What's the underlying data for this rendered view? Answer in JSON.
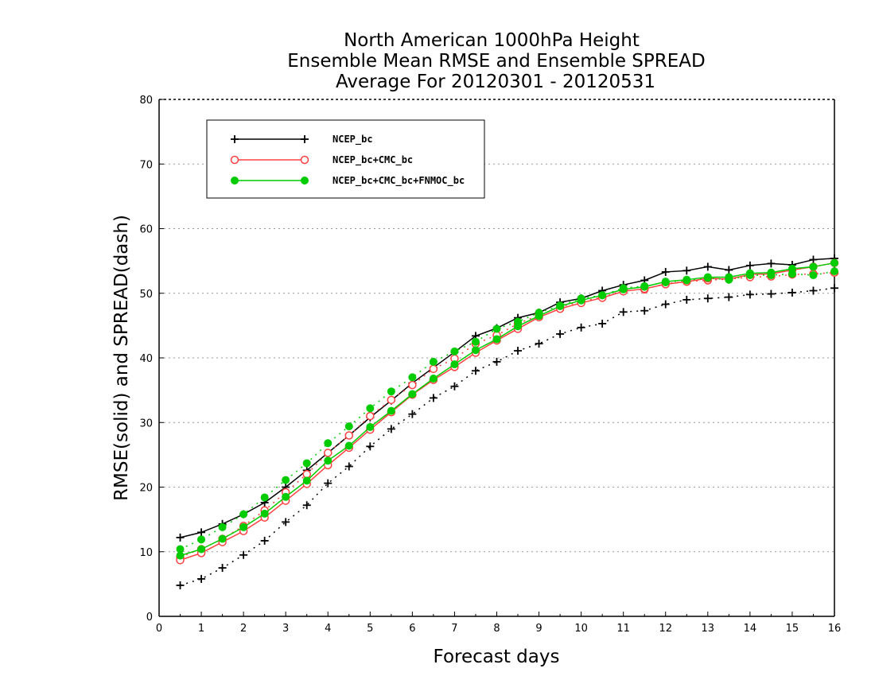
{
  "chart_data": {
    "type": "line",
    "title": [
      "North American 1000hPa Height",
      "Ensemble Mean RMSE and Ensemble SPREAD",
      "Average For 20120301 - 20120531"
    ],
    "xlabel": "Forecast days",
    "ylabel": "RMSE(solid) and SPREAD(dash)",
    "xlim": [
      0,
      16
    ],
    "ylim": [
      0,
      80
    ],
    "xticks": [
      0,
      1,
      2,
      3,
      4,
      5,
      6,
      7,
      8,
      9,
      10,
      11,
      12,
      13,
      14,
      15,
      16
    ],
    "yticks": [
      0,
      10,
      20,
      30,
      40,
      50,
      60,
      70,
      80
    ],
    "grid": "horizontal-dotted",
    "legend_position": "top-left",
    "x": [
      0.5,
      1,
      1.5,
      2,
      2.5,
      3,
      3.5,
      4,
      4.5,
      5,
      5.5,
      6,
      6.5,
      7,
      7.5,
      8,
      8.5,
      9,
      9.5,
      10,
      10.5,
      11,
      11.5,
      12,
      12.5,
      13,
      13.5,
      14,
      14.5,
      15,
      15.5,
      16
    ],
    "series": [
      {
        "name": "NCEP_bc",
        "color": "#000000",
        "marker": "plus",
        "rmse": [
          12.2,
          13.0,
          14.3,
          15.8,
          17.6,
          20.0,
          22.6,
          25.3,
          28.0,
          30.8,
          33.4,
          36.1,
          38.5,
          40.9,
          43.4,
          44.6,
          46.2,
          47.0,
          48.6,
          49.2,
          50.4,
          51.3,
          52.0,
          53.3,
          53.5,
          54.1,
          53.6,
          54.3,
          54.6,
          54.4,
          55.2,
          55.4
        ],
        "spread": [
          4.8,
          5.8,
          7.5,
          9.5,
          11.7,
          14.6,
          17.2,
          20.6,
          23.2,
          26.3,
          29.0,
          31.3,
          33.8,
          35.6,
          38.0,
          39.4,
          41.1,
          42.2,
          43.7,
          44.7,
          45.3,
          47.1,
          47.3,
          48.3,
          49.0,
          49.2,
          49.4,
          49.8,
          49.9,
          50.1,
          50.4,
          50.8
        ]
      },
      {
        "name": "NCEP_bc+CMC_bc",
        "color": "#ff4040",
        "marker": "open-circle",
        "rmse": [
          8.7,
          9.8,
          11.5,
          13.2,
          15.3,
          17.9,
          20.5,
          23.4,
          26.1,
          28.9,
          31.6,
          34.3,
          36.6,
          38.6,
          40.8,
          42.7,
          44.5,
          46.3,
          47.6,
          48.5,
          49.3,
          50.3,
          50.7,
          51.4,
          51.8,
          52.3,
          52.2,
          52.9,
          53.0,
          53.6,
          54.1,
          54.7
        ],
        "spread": [
          9.2,
          10.4,
          12.0,
          14.0,
          16.4,
          19.2,
          22.0,
          25.3,
          28.0,
          31.0,
          33.5,
          35.8,
          38.3,
          39.9,
          42.2,
          43.5,
          45.3,
          46.6,
          47.9,
          48.7,
          49.4,
          50.4,
          50.6,
          51.5,
          51.8,
          52.0,
          52.2,
          52.5,
          52.6,
          52.9,
          53.0,
          53.2
        ]
      },
      {
        "name": "NCEP_bc+CMC_bc+FNMOC_bc",
        "color": "#00cc00",
        "marker": "filled-circle",
        "rmse": [
          9.4,
          10.4,
          12.0,
          13.8,
          15.9,
          18.5,
          21.0,
          24.1,
          26.4,
          29.3,
          31.8,
          34.4,
          36.8,
          39.0,
          41.2,
          42.9,
          44.9,
          46.5,
          48.0,
          48.9,
          49.7,
          50.6,
          51.0,
          51.8,
          52.1,
          52.5,
          52.5,
          53.1,
          53.2,
          53.8,
          54.1,
          54.7
        ],
        "spread": [
          10.4,
          11.9,
          13.8,
          15.8,
          18.4,
          21.1,
          23.7,
          26.8,
          29.4,
          32.2,
          34.8,
          37.0,
          39.4,
          41.0,
          42.5,
          44.5,
          45.6,
          47.0,
          48.1,
          49.2,
          49.7,
          50.8,
          51.1,
          51.7,
          52.0,
          52.4,
          52.1,
          52.8,
          52.8,
          53.0,
          52.8,
          53.4
        ]
      }
    ]
  }
}
